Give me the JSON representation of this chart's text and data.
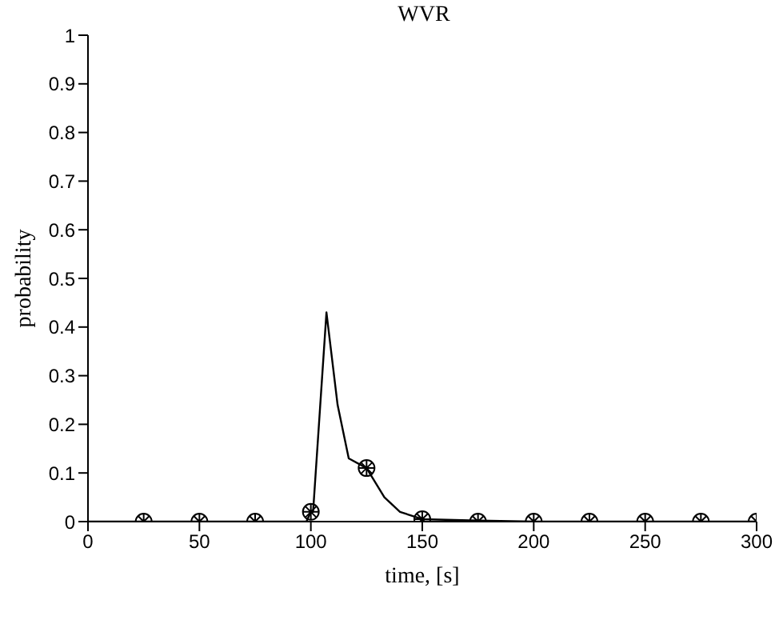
{
  "chart_data": {
    "type": "line",
    "title": "WVR",
    "xlabel": "time, [s]",
    "ylabel": "probability",
    "xlim": [
      0,
      300
    ],
    "xticks": [
      0,
      50,
      100,
      150,
      200,
      250,
      300
    ],
    "ylim": [
      0,
      1
    ],
    "yticks": [
      0,
      0.1,
      0.2,
      0.3,
      0.4,
      0.5,
      0.6,
      0.7,
      0.8,
      0.9,
      1
    ],
    "grid": false,
    "series": [
      {
        "color": "#000000",
        "marker": "none",
        "x": [
          0,
          98,
          100,
          101,
          107,
          112,
          117,
          125,
          133,
          140,
          150,
          175,
          200,
          300
        ],
        "values": [
          0,
          0,
          0.02,
          0.02,
          0.43,
          0.24,
          0.13,
          0.11,
          0.05,
          0.02,
          0.005,
          0.002,
          0,
          0
        ]
      },
      {
        "type": "scatter",
        "color": "#000000",
        "marker": "circle",
        "x": [
          25,
          50,
          75,
          100,
          125,
          150,
          175,
          200,
          225,
          250,
          275,
          300
        ],
        "values": [
          0,
          0,
          0,
          0.02,
          0.11,
          0.005,
          0,
          0,
          0,
          0,
          0,
          0
        ]
      }
    ]
  }
}
